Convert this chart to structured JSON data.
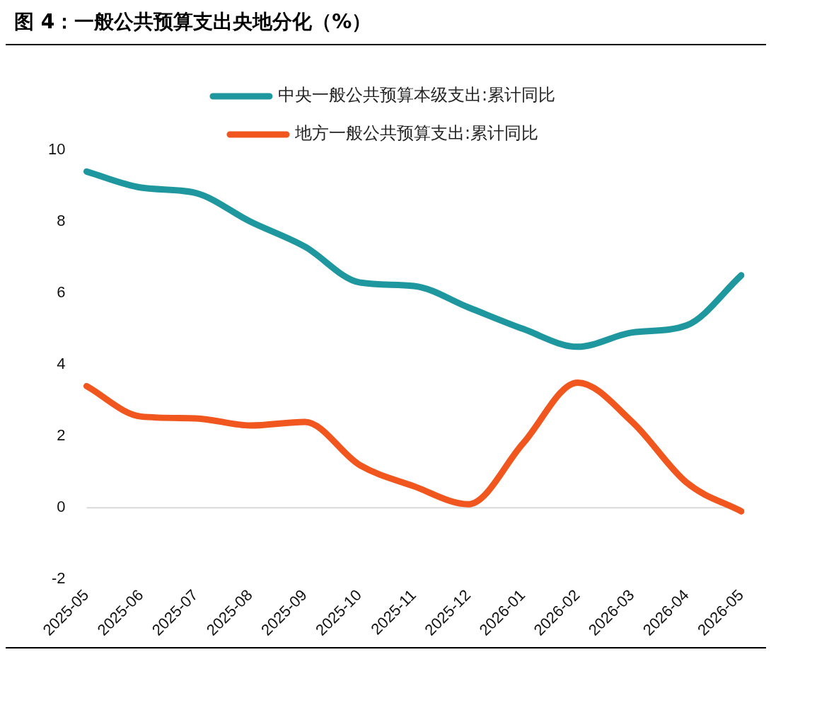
{
  "chart_data": {
    "type": "line",
    "title": "图 4：一般公共预算支出央地分化（%）",
    "categories": [
      "2025-05",
      "2025-06",
      "2025-07",
      "2025-08",
      "2025-09",
      "2025-10",
      "2025-11",
      "2025-12",
      "2026-01",
      "2026-02",
      "2026-03",
      "2026-04",
      "2026-05"
    ],
    "series": [
      {
        "name": "中央一般公共预算本级支出:累计同比",
        "color": "#1f979f",
        "values": [
          9.4,
          8.95,
          8.8,
          8.0,
          7.3,
          6.3,
          6.2,
          5.6,
          5.0,
          4.5,
          4.9,
          5.1,
          6.5
        ]
      },
      {
        "name": "地方一般公共预算支出:累计同比",
        "color": "#f0561d",
        "values": [
          3.4,
          2.55,
          2.5,
          2.3,
          2.4,
          1.2,
          0.6,
          0.1,
          1.8,
          3.5,
          2.4,
          0.7,
          -0.1
        ]
      }
    ],
    "ylim": [
      -2,
      10
    ],
    "yticks": [
      -2,
      0,
      2,
      4,
      6,
      8,
      10
    ],
    "ref_lines": [
      {
        "axis": "y",
        "value": 0,
        "color": "#d9d9d9"
      }
    ],
    "grid": false,
    "legend": "top",
    "marker": "none",
    "line_style": "solid"
  }
}
